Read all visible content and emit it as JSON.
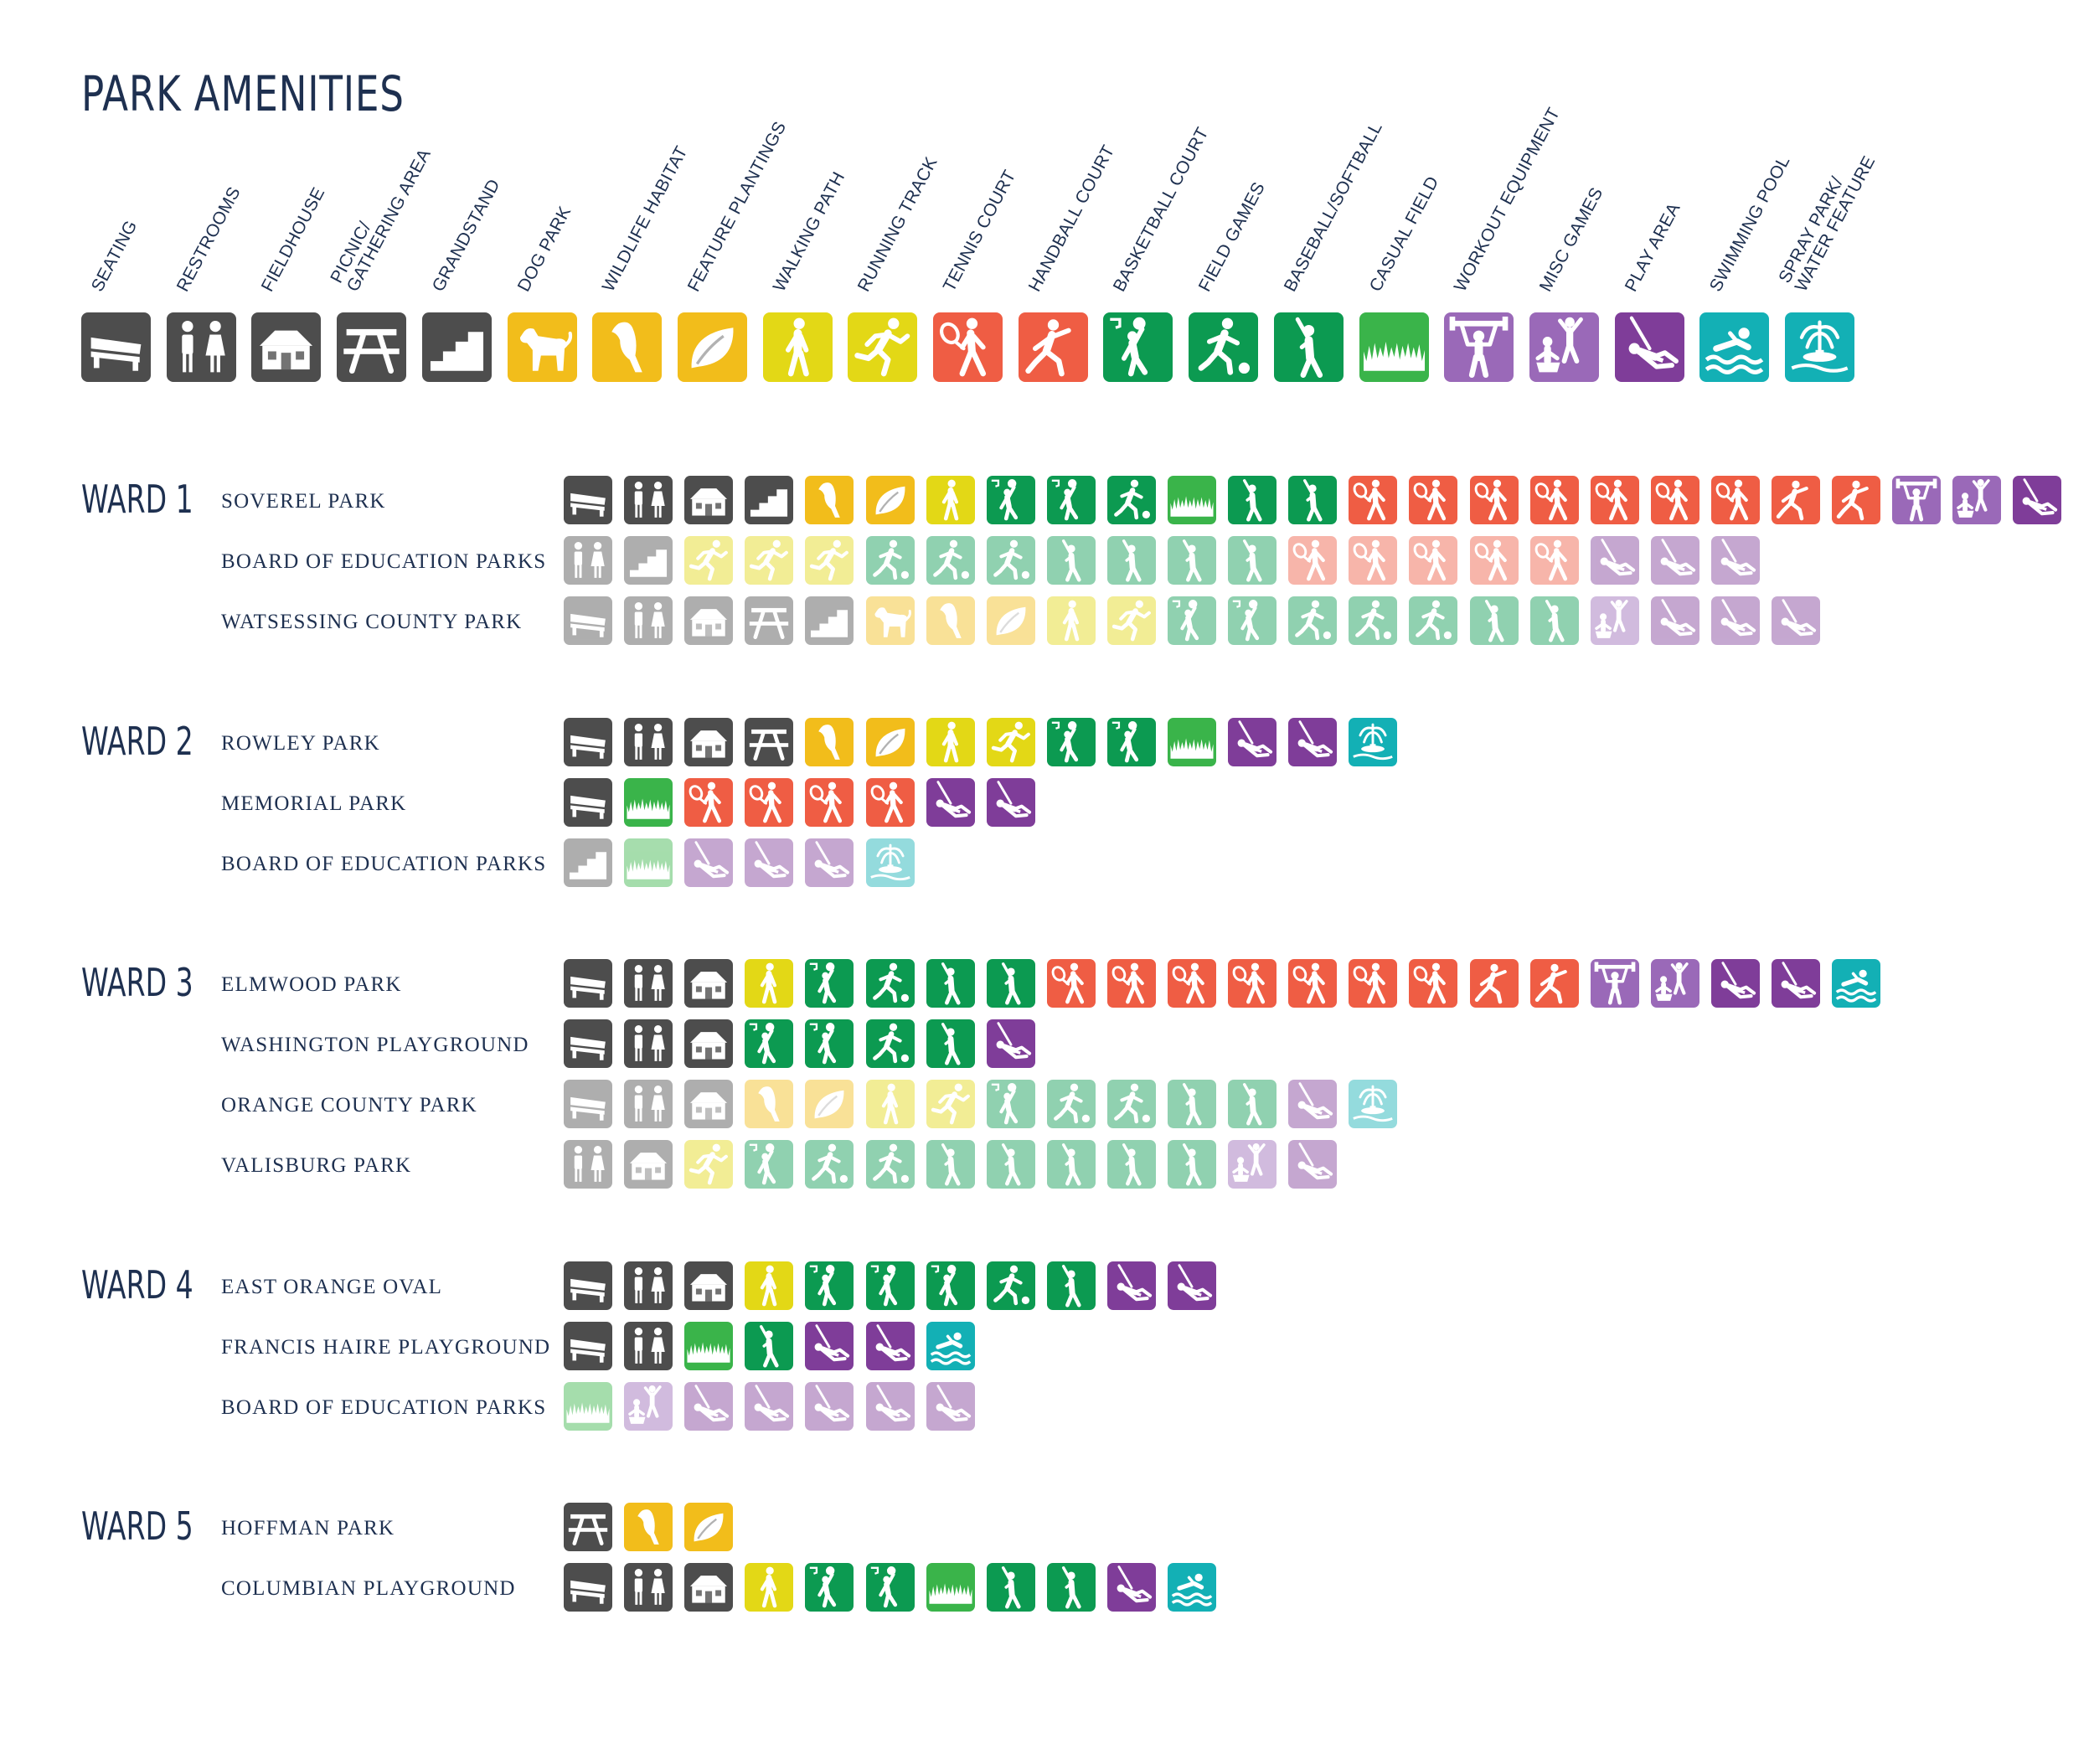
{
  "title": "PARK AMENITIES",
  "colors": {
    "text": "#1e3050",
    "gray": "#4d4d4d",
    "yellow": "#f2bd1b",
    "lime": "#e3d816",
    "red": "#ef5d44",
    "green": "#0c9a51",
    "lightgreen": "#3ab44a",
    "purple": "#9a69b8",
    "darkpurple": "#7f3d99",
    "teal": "#13b0b5"
  },
  "amenities": [
    {
      "key": "seating",
      "label": "SEATING",
      "icon": "bench-icon",
      "color": "gray"
    },
    {
      "key": "restrooms",
      "label": "RESTROOMS",
      "icon": "restroom-icon",
      "color": "gray"
    },
    {
      "key": "fieldhouse",
      "label": "FIELDHOUSE",
      "icon": "fieldhouse-icon",
      "color": "gray"
    },
    {
      "key": "picnic",
      "label": "PICNIC/\nGATHERING AREA",
      "icon": "picnic-table-icon",
      "color": "gray"
    },
    {
      "key": "grandstand",
      "label": "GRANDSTAND",
      "icon": "grandstand-icon",
      "color": "gray"
    },
    {
      "key": "dog",
      "label": "DOG PARK",
      "icon": "dog-icon",
      "color": "yellow"
    },
    {
      "key": "wildlife",
      "label": "WILDLIFE HABITAT",
      "icon": "bird-icon",
      "color": "yellow"
    },
    {
      "key": "plantings",
      "label": "FEATURE PLANTINGS",
      "icon": "leaf-icon",
      "color": "yellow"
    },
    {
      "key": "walking",
      "label": "WALKING PATH",
      "icon": "walker-icon",
      "color": "lime"
    },
    {
      "key": "running",
      "label": "RUNNING TRACK",
      "icon": "runner-icon",
      "color": "lime"
    },
    {
      "key": "tennis",
      "label": "TENNIS COURT",
      "icon": "tennis-icon",
      "color": "red"
    },
    {
      "key": "handball",
      "label": "HANDBALL COURT",
      "icon": "handball-icon",
      "color": "red"
    },
    {
      "key": "basketball",
      "label": "BASKETBALL COURT",
      "icon": "basketball-icon",
      "color": "green"
    },
    {
      "key": "fieldgames",
      "label": "FIELD GAMES",
      "icon": "soccer-icon",
      "color": "green"
    },
    {
      "key": "baseball",
      "label": "BASEBALL/SOFTBALL",
      "icon": "batter-icon",
      "color": "green"
    },
    {
      "key": "casual",
      "label": "CASUAL FIELD",
      "icon": "grass-icon",
      "color": "lightgreen"
    },
    {
      "key": "workout",
      "label": "WORKOUT EQUIPMENT",
      "icon": "weightlifter-icon",
      "color": "purple"
    },
    {
      "key": "misc",
      "label": "MISC GAMES",
      "icon": "misc-games-icon",
      "color": "purple"
    },
    {
      "key": "play",
      "label": "PLAY AREA",
      "icon": "swing-icon",
      "color": "darkpurple"
    },
    {
      "key": "pool",
      "label": "SWIMMING POOL",
      "icon": "swimmer-icon",
      "color": "teal"
    },
    {
      "key": "spray",
      "label": "SPRAY PARK/\nWATER FEATURE",
      "icon": "fountain-icon",
      "color": "teal"
    }
  ],
  "wards": [
    {
      "label": "WARD 1",
      "parks": [
        {
          "name": "SOVEREL PARK",
          "faded": false,
          "icons": [
            "seating",
            "restrooms",
            "fieldhouse",
            "grandstand",
            "wildlife",
            "plantings",
            "walking",
            "basketball",
            "basketball",
            "fieldgames",
            "casual",
            "baseball",
            "baseball",
            "tennis",
            "tennis",
            "tennis",
            "tennis",
            "tennis",
            "tennis",
            "tennis",
            "handball",
            "handball",
            "workout",
            "misc",
            "play"
          ]
        },
        {
          "name": "BOARD OF EDUCATION PARKS",
          "faded": true,
          "icons": [
            "restrooms",
            "grandstand",
            "running",
            "running",
            "running",
            "fieldgames",
            "fieldgames",
            "fieldgames",
            "baseball",
            "baseball",
            "baseball",
            "baseball",
            "tennis",
            "tennis",
            "tennis",
            "tennis",
            "tennis",
            "play",
            "play",
            "play"
          ]
        },
        {
          "name": "WATSESSING COUNTY PARK",
          "faded": true,
          "icons": [
            "seating",
            "restrooms",
            "fieldhouse",
            "picnic",
            "grandstand",
            "dog",
            "wildlife",
            "plantings",
            "walking",
            "running",
            "basketball",
            "basketball",
            "fieldgames",
            "fieldgames",
            "fieldgames",
            "baseball",
            "baseball",
            "misc",
            "play",
            "play",
            "play"
          ]
        }
      ]
    },
    {
      "label": "WARD 2",
      "parks": [
        {
          "name": "ROWLEY PARK",
          "faded": false,
          "icons": [
            "seating",
            "restrooms",
            "fieldhouse",
            "picnic",
            "wildlife",
            "plantings",
            "walking",
            "running",
            "basketball",
            "basketball",
            "casual",
            "play",
            "play",
            "spray"
          ]
        },
        {
          "name": "MEMORIAL PARK",
          "faded": false,
          "icons": [
            "seating",
            "casual",
            "tennis",
            "tennis",
            "tennis",
            "tennis",
            "play",
            "play"
          ]
        },
        {
          "name": "BOARD OF EDUCATION PARKS",
          "faded": true,
          "icons": [
            "grandstand",
            "casual",
            "play",
            "play",
            "play",
            "spray"
          ]
        }
      ]
    },
    {
      "label": "WARD 3",
      "parks": [
        {
          "name": "ELMWOOD PARK",
          "faded": false,
          "icons": [
            "seating",
            "restrooms",
            "fieldhouse",
            "walking",
            "basketball",
            "fieldgames",
            "baseball",
            "baseball",
            "tennis",
            "tennis",
            "tennis",
            "tennis",
            "tennis",
            "tennis",
            "tennis",
            "handball",
            "handball",
            "workout",
            "misc",
            "play",
            "play",
            "pool"
          ]
        },
        {
          "name": "WASHINGTON PLAYGROUND",
          "faded": false,
          "icons": [
            "seating",
            "restrooms",
            "fieldhouse",
            "basketball",
            "basketball",
            "fieldgames",
            "baseball",
            "play"
          ]
        },
        {
          "name": "ORANGE COUNTY PARK",
          "faded": true,
          "icons": [
            "seating",
            "restrooms",
            "fieldhouse",
            "wildlife",
            "plantings",
            "walking",
            "running",
            "basketball",
            "fieldgames",
            "fieldgames",
            "baseball",
            "baseball",
            "play",
            "spray"
          ]
        },
        {
          "name": "VALISBURG PARK",
          "faded": true,
          "icons": [
            "restrooms",
            "fieldhouse",
            "running",
            "basketball",
            "fieldgames",
            "fieldgames",
            "baseball",
            "baseball",
            "baseball",
            "baseball",
            "baseball",
            "misc",
            "play"
          ]
        }
      ]
    },
    {
      "label": "WARD 4",
      "parks": [
        {
          "name": "EAST ORANGE OVAL",
          "faded": false,
          "icons": [
            "seating",
            "restrooms",
            "fieldhouse",
            "walking",
            "basketball",
            "basketball",
            "basketball",
            "fieldgames",
            "baseball",
            "play",
            "play"
          ]
        },
        {
          "name": "FRANCIS HAIRE PLAYGROUND",
          "faded": false,
          "icons": [
            "seating",
            "restrooms",
            "casual",
            "baseball",
            "play",
            "play",
            "pool"
          ]
        },
        {
          "name": "BOARD OF EDUCATION PARKS",
          "faded": true,
          "icons": [
            "casual",
            "misc",
            "play",
            "play",
            "play",
            "play",
            "play"
          ]
        }
      ]
    },
    {
      "label": "WARD 5",
      "parks": [
        {
          "name": "HOFFMAN PARK",
          "faded": false,
          "icons": [
            "picnic",
            "wildlife",
            "plantings"
          ]
        },
        {
          "name": "COLUMBIAN PLAYGROUND",
          "faded": false,
          "icons": [
            "seating",
            "restrooms",
            "fieldhouse",
            "walking",
            "basketball",
            "basketball",
            "casual",
            "baseball",
            "baseball",
            "play",
            "pool"
          ]
        }
      ]
    }
  ]
}
